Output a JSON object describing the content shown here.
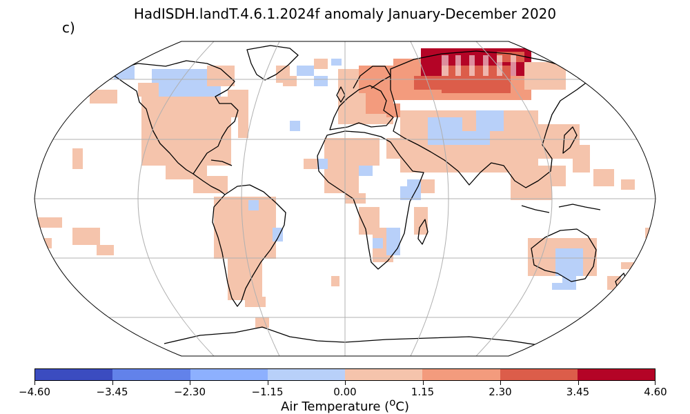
{
  "title": "HadISDH.landT.4.6.1.2024f anomaly January-December 2020",
  "panel_label": "c)",
  "colorbar": {
    "label": "Air Temperature (",
    "label_sup": "o",
    "label_end": "C)",
    "ticks": [
      "−4.60",
      "−3.45",
      "−2.30",
      "−1.15",
      "0.00",
      "1.15",
      "2.30",
      "3.45",
      "4.60"
    ],
    "colors": [
      "#3b4cc0",
      "#6282ea",
      "#8db0fe",
      "#b8d0f9",
      "#f5c4ac",
      "#f39b7d",
      "#dc5d4a",
      "#b40426"
    ]
  },
  "map": {
    "projection": "robinson",
    "graticule": true,
    "coastlines": true
  }
}
